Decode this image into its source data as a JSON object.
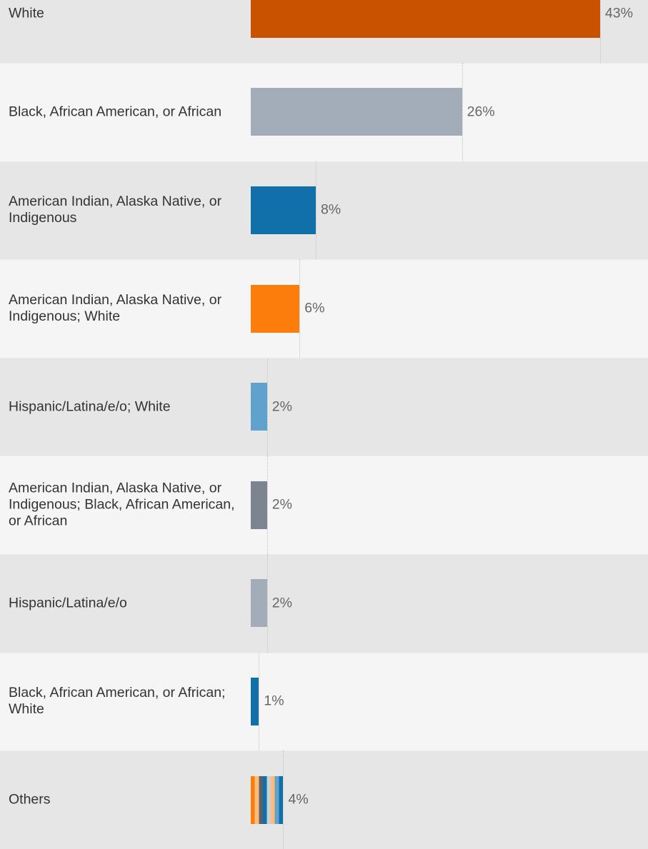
{
  "chart_data": {
    "type": "bar",
    "orientation": "horizontal",
    "categories": [
      "White",
      "Black, African American, or African",
      "American Indian, Alaska Native, or Indigenous",
      "American Indian, Alaska Native, or Indigenous; White",
      "Hispanic/Latina/e/o; White",
      "American Indian, Alaska Native, or Indigenous; Black, African American, or African",
      "Hispanic/Latina/e/o",
      "Black, African American, or African; White",
      "Others"
    ],
    "values": [
      43,
      26,
      8,
      6,
      2,
      2,
      2,
      1,
      4
    ],
    "value_labels": [
      "43%",
      "26%",
      "8%",
      "6%",
      "2%",
      "2%",
      "2%",
      "1%",
      "4%"
    ],
    "colors": [
      "#c85200",
      "#a3acb9",
      "#1170aa",
      "#fc7d0b",
      "#5fa2ce",
      "#7b848f",
      "#a3acb9",
      "#1170aa",
      [
        "#fc7d0b",
        "#ffbc79",
        "#57606c",
        "#1170aa",
        "#c8d0d9",
        "#ffbc79",
        "#5fa2ce",
        "#1170aa"
      ]
    ],
    "xlim": [
      0,
      48.9
    ]
  }
}
